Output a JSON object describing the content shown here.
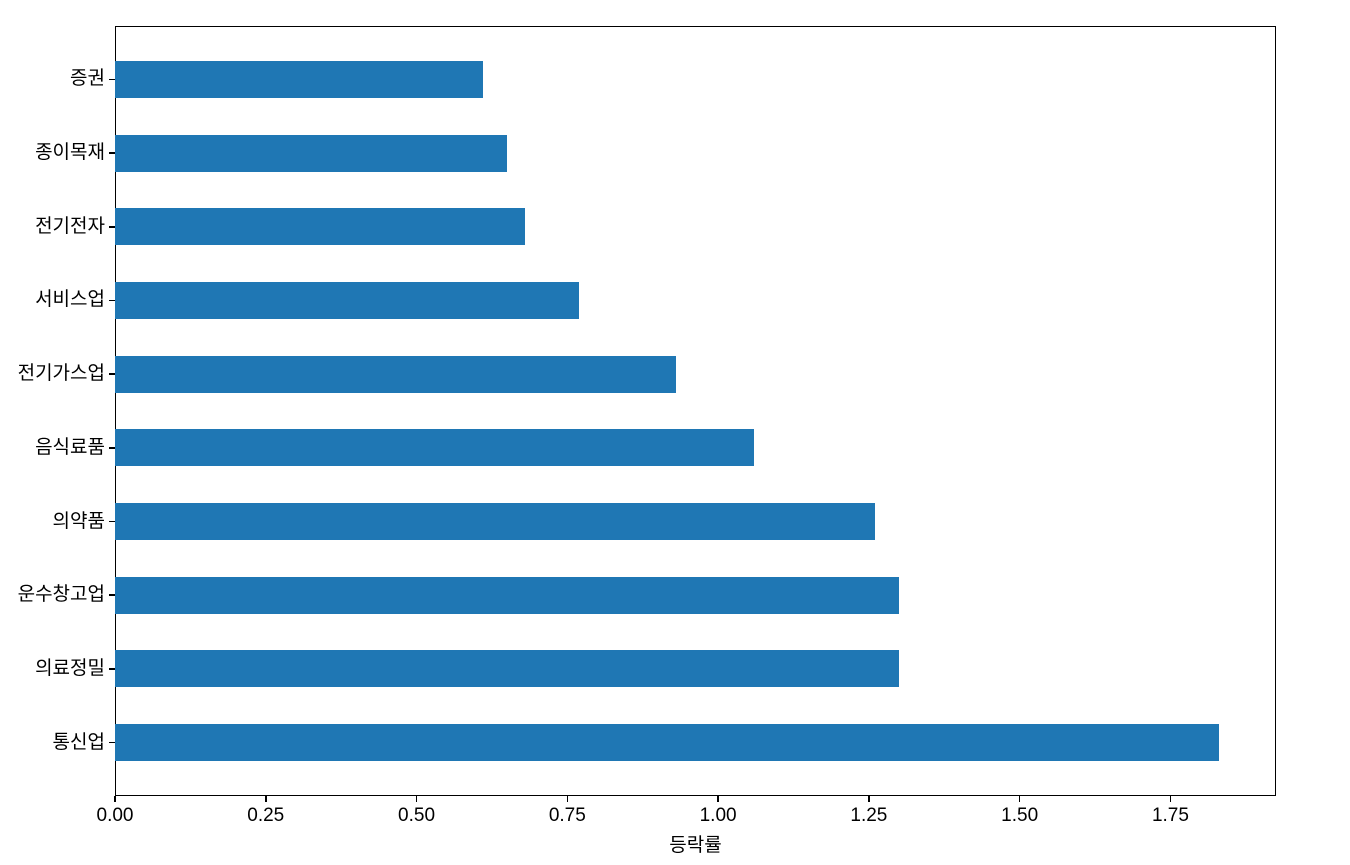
{
  "chart_data": {
    "type": "bar",
    "orientation": "horizontal",
    "title": "",
    "xlabel": "등락률",
    "ylabel": "",
    "categories": [
      "증권",
      "종이목재",
      "전기전자",
      "서비스업",
      "전기가스업",
      "음식료품",
      "의약품",
      "운수창고업",
      "의료정밀",
      "통신업"
    ],
    "values": [
      0.61,
      0.65,
      0.68,
      0.77,
      0.93,
      1.06,
      1.26,
      1.3,
      1.3,
      1.83
    ],
    "category_order": "top-to-bottom",
    "x_ticks": [
      0,
      0.25,
      0.5,
      0.75,
      1.0,
      1.25,
      1.5,
      1.75
    ],
    "x_tick_labels": [
      "0.00",
      "0.25",
      "0.50",
      "0.75",
      "1.00",
      "1.25",
      "1.50",
      "1.75"
    ],
    "xlim": [
      0,
      1.925
    ],
    "bar_color": "#1f77b4",
    "background_color": "#ffffff",
    "spine_color": "#000000",
    "grid": false,
    "legend_position": "none"
  }
}
